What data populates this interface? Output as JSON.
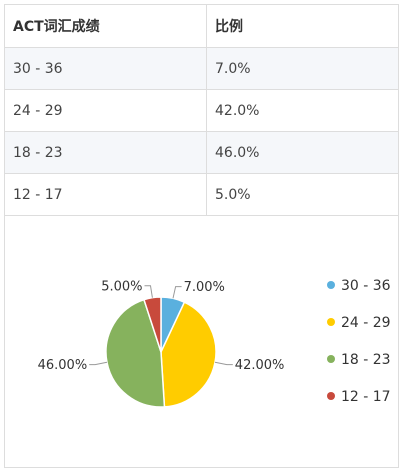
{
  "table": {
    "headers": [
      "ACT词汇成绩",
      "比例"
    ],
    "rows": [
      [
        "30 - 36",
        "7.0%"
      ],
      [
        "24 - 29",
        "42.0%"
      ],
      [
        "18 - 23",
        "46.0%"
      ],
      [
        "12 - 17",
        "5.0%"
      ]
    ]
  },
  "chart_data": {
    "type": "pie",
    "slices": [
      {
        "name": "30 - 36",
        "value": 7.0,
        "label": "7.00%",
        "color": "#5ab0de"
      },
      {
        "name": "24 - 29",
        "value": 42.0,
        "label": "42.00%",
        "color": "#ffcc00"
      },
      {
        "name": "18 - 23",
        "value": 46.0,
        "label": "46.00%",
        "color": "#86b25d"
      },
      {
        "name": "12 - 17",
        "value": 5.0,
        "label": "5.00%",
        "color": "#c84a3c"
      }
    ],
    "legend_position": "right",
    "start_angle_deg": 0,
    "direction": "clockwise"
  }
}
